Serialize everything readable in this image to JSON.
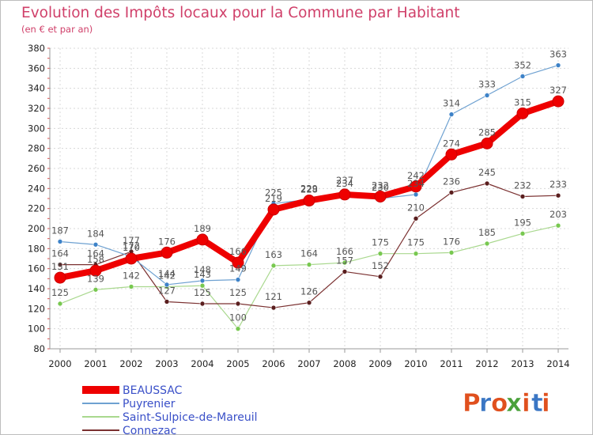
{
  "title": "Evolution des Impôts locaux pour la Commune par Habitant",
  "subtitle": "(en € et par an)",
  "logo": {
    "text": "Proxiti",
    "colors": [
      "#e0501e",
      "#3a76c4",
      "#e0501e",
      "#4aa13a",
      "#e0501e",
      "#3a76c4",
      "#e0501e"
    ]
  },
  "chart_data": {
    "type": "line",
    "title": "Evolution des Impôts locaux pour la Commune par Habitant",
    "subtitle": "(en € et par an)",
    "xlabel": "",
    "ylabel": "",
    "x": [
      "2000",
      "2001",
      "2002",
      "2003",
      "2004",
      "2005",
      "2006",
      "2007",
      "2008",
      "2009",
      "2010",
      "2011",
      "2012",
      "2013",
      "2014"
    ],
    "ylim": [
      80,
      380
    ],
    "yticks": [
      80,
      100,
      120,
      140,
      160,
      180,
      200,
      220,
      240,
      260,
      280,
      300,
      320,
      340,
      360,
      380
    ],
    "grid": true,
    "legend_position": "bottom-left",
    "series": [
      {
        "name": "BEAUSSAC",
        "color": "#ee0000",
        "width": 8,
        "marker": 7,
        "values": [
          151,
          158,
          170,
          176,
          189,
          166,
          219,
          228,
          234,
          232,
          242,
          274,
          285,
          315,
          327
        ]
      },
      {
        "name": "Puyrenier",
        "color": "#6ea1d1",
        "marker_color": "#3d82c8",
        "width": 1.2,
        "marker": 3,
        "values": [
          187,
          184,
          172,
          144,
          148,
          149,
          225,
          229,
          237,
          230,
          234,
          314,
          333,
          352,
          363
        ]
      },
      {
        "name": "Saint-Sulpice-de-Mareuil",
        "color": "#a9d88e",
        "marker_color": "#78c850",
        "width": 1.2,
        "marker": 3,
        "values": [
          125,
          139,
          142,
          142,
          143,
          100,
          163,
          164,
          166,
          175,
          175,
          176,
          185,
          195,
          203
        ]
      },
      {
        "name": "Connezac",
        "color": "#7a3030",
        "marker_color": "#5a1e1e",
        "width": 1.2,
        "marker": 3,
        "values": [
          164,
          164,
          177,
          127,
          125,
          125,
          121,
          126,
          157,
          152,
          210,
          236,
          245,
          232,
          233
        ]
      }
    ]
  }
}
